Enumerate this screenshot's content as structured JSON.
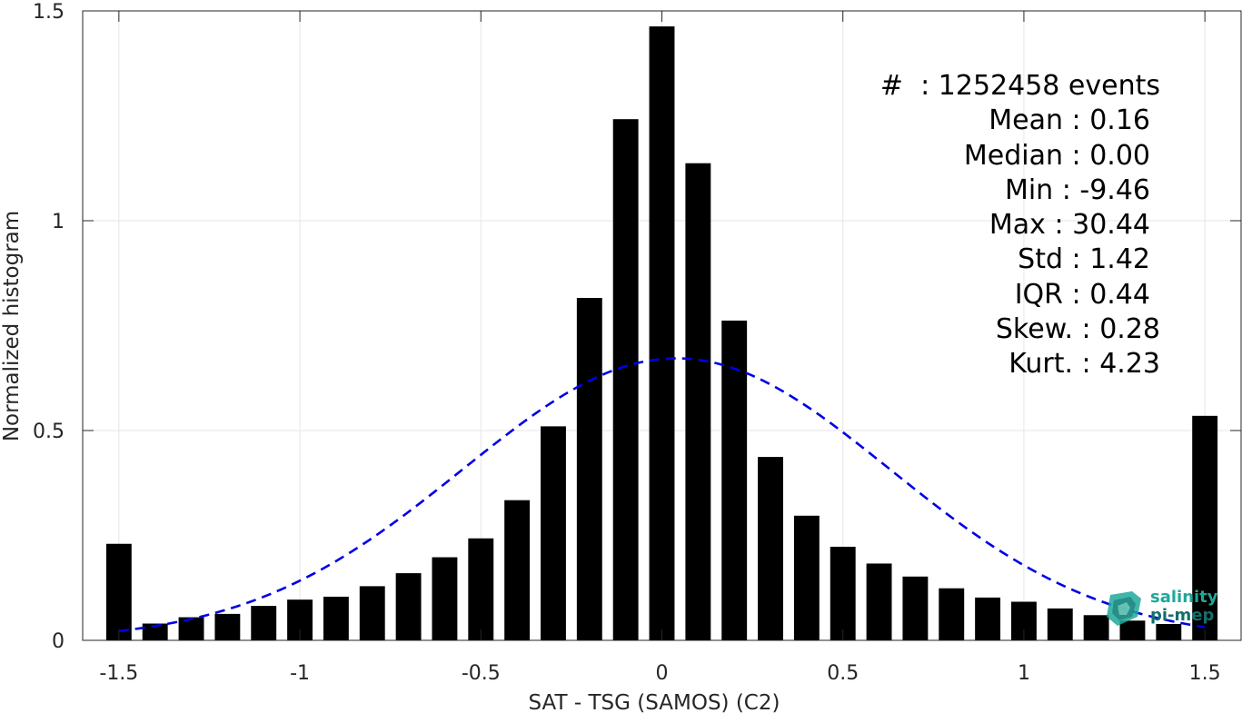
{
  "chart_data": {
    "type": "bar",
    "xlabel": "SAT - TSG (SAMOS) (C2)",
    "ylabel": "Normalized histogram",
    "xlim": [
      -1.6,
      1.6
    ],
    "ylim": [
      0,
      1.5
    ],
    "xticks": [
      -1.5,
      -1,
      -0.5,
      0,
      0.5,
      1,
      1.5
    ],
    "xtick_labels": [
      "-1.5",
      "-1",
      "-0.5",
      "0",
      "0.5",
      "1",
      "1.5"
    ],
    "yticks": [
      0,
      0.5,
      1,
      1.5
    ],
    "ytick_labels": [
      "0",
      "0.5",
      "1",
      "1.5"
    ],
    "grid": true,
    "bar_width": 0.07,
    "bar_color": "#000000",
    "x": [
      -1.5,
      -1.4,
      -1.3,
      -1.2,
      -1.1,
      -1.0,
      -0.9,
      -0.8,
      -0.7,
      -0.6,
      -0.5,
      -0.4,
      -0.3,
      -0.2,
      -0.1,
      0.0,
      0.1,
      0.2,
      0.3,
      0.4,
      0.5,
      0.6,
      0.7,
      0.8,
      0.9,
      1.0,
      1.1,
      1.2,
      1.3,
      1.4,
      1.5
    ],
    "values": [
      0.23,
      0.04,
      0.055,
      0.063,
      0.082,
      0.097,
      0.104,
      0.129,
      0.16,
      0.198,
      0.243,
      0.334,
      0.51,
      0.816,
      1.242,
      1.463,
      1.137,
      0.762,
      0.437,
      0.297,
      0.223,
      0.183,
      0.152,
      0.124,
      0.102,
      0.092,
      0.076,
      0.06,
      0.047,
      0.039,
      0.535
    ],
    "fit": {
      "type": "gaussian",
      "mean": 0.04,
      "std": 0.59,
      "peak": 0.672,
      "x_range": [
        -1.5,
        1.5
      ],
      "color": "#0000e6",
      "style": "dashed"
    },
    "annotations": [
      "#  : 1252458 events",
      "Mean : 0.16",
      "Median : 0.00",
      "Min : -9.46",
      "Max : 30.44",
      "Std : 1.42",
      "IQR : 0.44",
      "Skew. : 0.28",
      "Kurt. : 4.23"
    ]
  },
  "logo": {
    "line1": "salinity",
    "line2": "pi-mep",
    "color_primary": "#1fa89a",
    "color_secondary": "#146e6e"
  }
}
